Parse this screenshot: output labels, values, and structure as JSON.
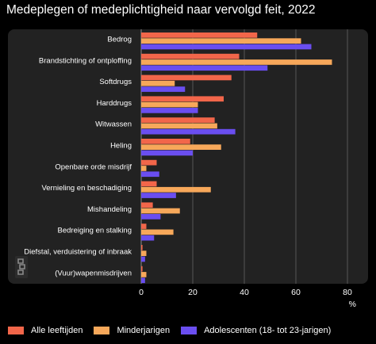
{
  "chart_data": {
    "type": "bar",
    "orientation": "horizontal",
    "title": "Medeplegen of medeplichtigheid naar vervolgd feit, 2022",
    "unit": "%",
    "xlim": [
      0,
      85
    ],
    "xticks": [
      0,
      20,
      40,
      60,
      80
    ],
    "grid": true,
    "legend_position": "bottom",
    "categories": [
      "Bedrog",
      "Brandstichting of ontploffing",
      "Softdrugs",
      "Harddrugs",
      "Witwassen",
      "Heling",
      "Openbare orde misdrijf",
      "Vernieling en beschadiging",
      "Mishandeling",
      "Bedreiging en stalking",
      "Diefstal, verduistering of inbraak",
      "(Vuur)wapenmisdrijven"
    ],
    "series": [
      {
        "name": "Alle leeftijden",
        "color": "#f2664a",
        "values": [
          45,
          38,
          35,
          32,
          28.5,
          19,
          6,
          6,
          4.5,
          2,
          0.5,
          0.5
        ]
      },
      {
        "name": "Minderjarigen",
        "color": "#f7a85a",
        "values": [
          62,
          74,
          13,
          22,
          29.5,
          31,
          2,
          27,
          15,
          12.5,
          2,
          2
        ]
      },
      {
        "name": "Adolescenten (18- tot 23-jarigen)",
        "color": "#6a4ef0",
        "values": [
          66,
          49,
          17,
          22,
          36.5,
          20,
          7,
          13.5,
          7.5,
          5,
          1.5,
          1.5
        ]
      }
    ]
  },
  "logo": {
    "name": "cbs-logo-icon"
  }
}
